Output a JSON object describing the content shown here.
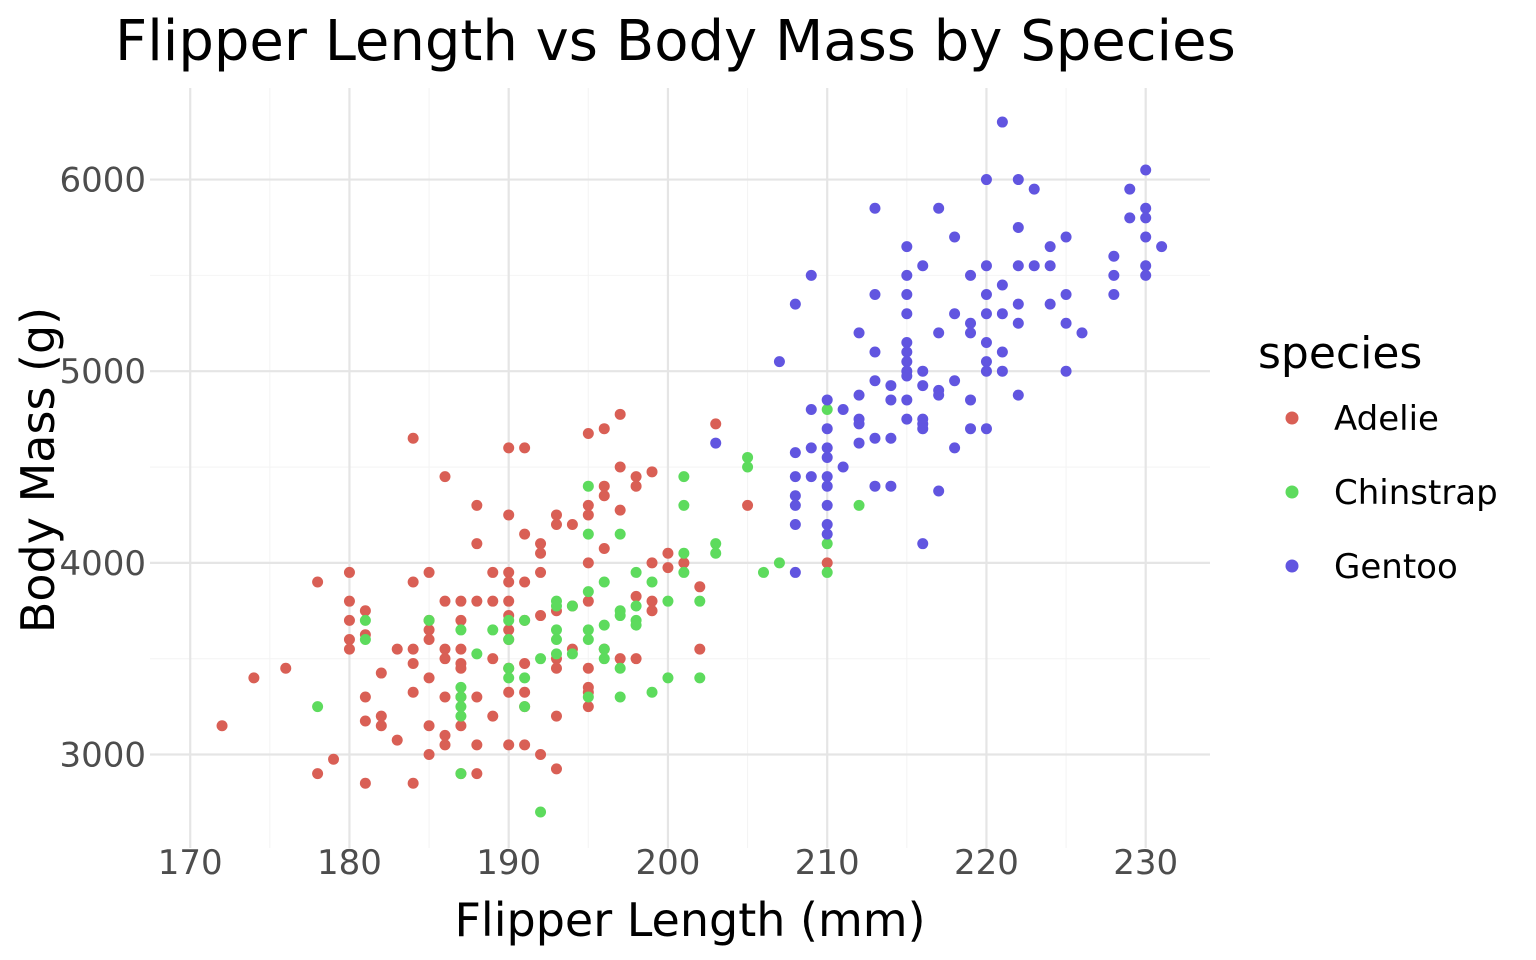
{
  "chart_data": {
    "type": "scatter",
    "title": "Flipper Length vs Body Mass by Species",
    "xlabel": "Flipper Length (mm)",
    "ylabel": "Body Mass (g)",
    "xlim": [
      169,
      233
    ],
    "ylim": [
      2560,
      6480
    ],
    "x_ticks": [
      170,
      180,
      190,
      200,
      210,
      220,
      230
    ],
    "y_ticks": [
      3000,
      4000,
      5000,
      6000
    ],
    "grid": true,
    "legend": {
      "title": "species",
      "position": "right"
    },
    "series": [
      {
        "name": "Adelie",
        "color": "#d95f55",
        "points": [
          [
            172,
            3150
          ],
          [
            174,
            3400
          ],
          [
            176,
            3450
          ],
          [
            178,
            3900
          ],
          [
            178,
            2900
          ],
          [
            179,
            2975
          ],
          [
            180,
            3950
          ],
          [
            180,
            3800
          ],
          [
            180,
            3700
          ],
          [
            180,
            3600
          ],
          [
            180,
            3550
          ],
          [
            181,
            3750
          ],
          [
            181,
            3625
          ],
          [
            181,
            3300
          ],
          [
            181,
            3175
          ],
          [
            181,
            2850
          ],
          [
            182,
            3200
          ],
          [
            182,
            3150
          ],
          [
            182,
            3425
          ],
          [
            183,
            3550
          ],
          [
            183,
            3075
          ],
          [
            184,
            4650
          ],
          [
            184,
            3900
          ],
          [
            184,
            3550
          ],
          [
            184,
            3475
          ],
          [
            184,
            3325
          ],
          [
            184,
            2850
          ],
          [
            185,
            3950
          ],
          [
            185,
            3700
          ],
          [
            185,
            3650
          ],
          [
            185,
            3600
          ],
          [
            185,
            3400
          ],
          [
            185,
            3150
          ],
          [
            185,
            3000
          ],
          [
            186,
            4450
          ],
          [
            186,
            3800
          ],
          [
            186,
            3550
          ],
          [
            186,
            3500
          ],
          [
            186,
            3300
          ],
          [
            186,
            3100
          ],
          [
            186,
            3050
          ],
          [
            187,
            3800
          ],
          [
            187,
            3700
          ],
          [
            187,
            3550
          ],
          [
            187,
            3475
          ],
          [
            187,
            3450
          ],
          [
            187,
            3300
          ],
          [
            187,
            3150
          ],
          [
            187,
            2900
          ],
          [
            188,
            4300
          ],
          [
            188,
            4100
          ],
          [
            188,
            3800
          ],
          [
            188,
            3300
          ],
          [
            188,
            3050
          ],
          [
            188,
            2900
          ],
          [
            189,
            3950
          ],
          [
            189,
            3800
          ],
          [
            189,
            3500
          ],
          [
            189,
            3200
          ],
          [
            190,
            4600
          ],
          [
            190,
            4250
          ],
          [
            190,
            3950
          ],
          [
            190,
            3900
          ],
          [
            190,
            3800
          ],
          [
            190,
            3725
          ],
          [
            190,
            3650
          ],
          [
            190,
            3600
          ],
          [
            190,
            3450
          ],
          [
            190,
            3325
          ],
          [
            190,
            3050
          ],
          [
            191,
            4600
          ],
          [
            191,
            4150
          ],
          [
            191,
            3900
          ],
          [
            191,
            3700
          ],
          [
            191,
            3475
          ],
          [
            191,
            3325
          ],
          [
            191,
            3250
          ],
          [
            191,
            3050
          ],
          [
            192,
            4100
          ],
          [
            192,
            4050
          ],
          [
            192,
            3950
          ],
          [
            192,
            3725
          ],
          [
            192,
            3000
          ],
          [
            193,
            4250
          ],
          [
            193,
            4200
          ],
          [
            193,
            3750
          ],
          [
            193,
            3500
          ],
          [
            193,
            3450
          ],
          [
            193,
            3200
          ],
          [
            193,
            2925
          ],
          [
            194,
            4200
          ],
          [
            194,
            3775
          ],
          [
            194,
            3550
          ],
          [
            195,
            4675
          ],
          [
            195,
            4300
          ],
          [
            195,
            4250
          ],
          [
            195,
            4000
          ],
          [
            195,
            3800
          ],
          [
            195,
            3450
          ],
          [
            195,
            3350
          ],
          [
            195,
            3325
          ],
          [
            195,
            3250
          ],
          [
            196,
            4700
          ],
          [
            196,
            4400
          ],
          [
            196,
            4350
          ],
          [
            196,
            4075
          ],
          [
            196,
            3550
          ],
          [
            197,
            4775
          ],
          [
            197,
            4500
          ],
          [
            197,
            4275
          ],
          [
            197,
            3500
          ],
          [
            198,
            4450
          ],
          [
            198,
            4400
          ],
          [
            198,
            3825
          ],
          [
            198,
            3500
          ],
          [
            199,
            4475
          ],
          [
            199,
            4000
          ],
          [
            199,
            3800
          ],
          [
            199,
            3750
          ],
          [
            200,
            4050
          ],
          [
            200,
            3975
          ],
          [
            201,
            4000
          ],
          [
            202,
            3875
          ],
          [
            202,
            3550
          ],
          [
            203,
            4725
          ],
          [
            205,
            4300
          ],
          [
            210,
            4000
          ]
        ]
      },
      {
        "name": "Chinstrap",
        "color": "#5ddb5d",
        "points": [
          [
            178,
            3250
          ],
          [
            181,
            3700
          ],
          [
            181,
            3600
          ],
          [
            185,
            3700
          ],
          [
            187,
            3650
          ],
          [
            187,
            3350
          ],
          [
            187,
            3300
          ],
          [
            187,
            3250
          ],
          [
            187,
            3200
          ],
          [
            187,
            2900
          ],
          [
            188,
            3525
          ],
          [
            189,
            3650
          ],
          [
            190,
            3700
          ],
          [
            190,
            3600
          ],
          [
            190,
            3450
          ],
          [
            190,
            3400
          ],
          [
            191,
            3700
          ],
          [
            191,
            3400
          ],
          [
            191,
            3250
          ],
          [
            192,
            3500
          ],
          [
            192,
            2700
          ],
          [
            193,
            3800
          ],
          [
            193,
            3775
          ],
          [
            193,
            3650
          ],
          [
            193,
            3600
          ],
          [
            193,
            3525
          ],
          [
            194,
            3775
          ],
          [
            194,
            3525
          ],
          [
            195,
            4400
          ],
          [
            195,
            4150
          ],
          [
            195,
            3850
          ],
          [
            195,
            3650
          ],
          [
            195,
            3600
          ],
          [
            195,
            3300
          ],
          [
            196,
            3900
          ],
          [
            196,
            3675
          ],
          [
            196,
            3550
          ],
          [
            196,
            3500
          ],
          [
            197,
            4150
          ],
          [
            197,
            3750
          ],
          [
            197,
            3725
          ],
          [
            197,
            3450
          ],
          [
            197,
            3300
          ],
          [
            198,
            3950
          ],
          [
            198,
            3775
          ],
          [
            198,
            3700
          ],
          [
            198,
            3675
          ],
          [
            199,
            3900
          ],
          [
            199,
            3325
          ],
          [
            200,
            3800
          ],
          [
            200,
            3400
          ],
          [
            201,
            4450
          ],
          [
            201,
            4300
          ],
          [
            201,
            4050
          ],
          [
            201,
            3950
          ],
          [
            202,
            3800
          ],
          [
            202,
            3400
          ],
          [
            203,
            4100
          ],
          [
            203,
            4050
          ],
          [
            205,
            4550
          ],
          [
            205,
            4500
          ],
          [
            206,
            3950
          ],
          [
            207,
            4000
          ],
          [
            210,
            4800
          ],
          [
            210,
            4100
          ],
          [
            210,
            3950
          ],
          [
            212,
            4300
          ]
        ]
      },
      {
        "name": "Gentoo",
        "color": "#6155e0",
        "points": [
          [
            203,
            4625
          ],
          [
            207,
            5050
          ],
          [
            208,
            5350
          ],
          [
            208,
            4575
          ],
          [
            208,
            4450
          ],
          [
            208,
            4350
          ],
          [
            208,
            4300
          ],
          [
            208,
            4200
          ],
          [
            208,
            3950
          ],
          [
            209,
            5500
          ],
          [
            209,
            4800
          ],
          [
            209,
            4600
          ],
          [
            209,
            4450
          ],
          [
            210,
            4850
          ],
          [
            210,
            4700
          ],
          [
            210,
            4600
          ],
          [
            210,
            4550
          ],
          [
            210,
            4450
          ],
          [
            210,
            4400
          ],
          [
            210,
            4300
          ],
          [
            210,
            4200
          ],
          [
            210,
            4150
          ],
          [
            211,
            4800
          ],
          [
            211,
            4500
          ],
          [
            212,
            5200
          ],
          [
            212,
            4875
          ],
          [
            212,
            4750
          ],
          [
            212,
            4725
          ],
          [
            212,
            4625
          ],
          [
            213,
            5850
          ],
          [
            213,
            5400
          ],
          [
            213,
            5100
          ],
          [
            213,
            4950
          ],
          [
            213,
            4650
          ],
          [
            213,
            4400
          ],
          [
            214,
            4925
          ],
          [
            214,
            4850
          ],
          [
            214,
            4650
          ],
          [
            214,
            4400
          ],
          [
            215,
            5650
          ],
          [
            215,
            5500
          ],
          [
            215,
            5400
          ],
          [
            215,
            5300
          ],
          [
            215,
            5150
          ],
          [
            215,
            5100
          ],
          [
            215,
            5050
          ],
          [
            215,
            5000
          ],
          [
            215,
            4975
          ],
          [
            215,
            4850
          ],
          [
            215,
            4750
          ],
          [
            216,
            5550
          ],
          [
            216,
            5000
          ],
          [
            216,
            4925
          ],
          [
            216,
            4750
          ],
          [
            216,
            4725
          ],
          [
            216,
            4700
          ],
          [
            216,
            4100
          ],
          [
            217,
            5850
          ],
          [
            217,
            5200
          ],
          [
            217,
            4900
          ],
          [
            217,
            4875
          ],
          [
            217,
            4375
          ],
          [
            218,
            5700
          ],
          [
            218,
            5300
          ],
          [
            218,
            4950
          ],
          [
            218,
            4600
          ],
          [
            219,
            5500
          ],
          [
            219,
            5250
          ],
          [
            219,
            5200
          ],
          [
            219,
            4850
          ],
          [
            219,
            4700
          ],
          [
            220,
            6000
          ],
          [
            220,
            5550
          ],
          [
            220,
            5400
          ],
          [
            220,
            5300
          ],
          [
            220,
            5150
          ],
          [
            220,
            5050
          ],
          [
            220,
            5000
          ],
          [
            220,
            4700
          ],
          [
            221,
            6300
          ],
          [
            221,
            5450
          ],
          [
            221,
            5300
          ],
          [
            221,
            5100
          ],
          [
            221,
            5000
          ],
          [
            222,
            6000
          ],
          [
            222,
            5750
          ],
          [
            222,
            5550
          ],
          [
            222,
            5350
          ],
          [
            222,
            5250
          ],
          [
            222,
            4875
          ],
          [
            223,
            5950
          ],
          [
            223,
            5550
          ],
          [
            224,
            5650
          ],
          [
            224,
            5550
          ],
          [
            224,
            5350
          ],
          [
            225,
            5700
          ],
          [
            225,
            5400
          ],
          [
            225,
            5250
          ],
          [
            225,
            5000
          ],
          [
            226,
            5200
          ],
          [
            228,
            5600
          ],
          [
            228,
            5500
          ],
          [
            228,
            5400
          ],
          [
            229,
            5950
          ],
          [
            229,
            5800
          ],
          [
            230,
            6050
          ],
          [
            230,
            5850
          ],
          [
            230,
            5800
          ],
          [
            230,
            5700
          ],
          [
            230,
            5550
          ],
          [
            230,
            5500
          ],
          [
            231,
            5650
          ]
        ]
      }
    ]
  }
}
